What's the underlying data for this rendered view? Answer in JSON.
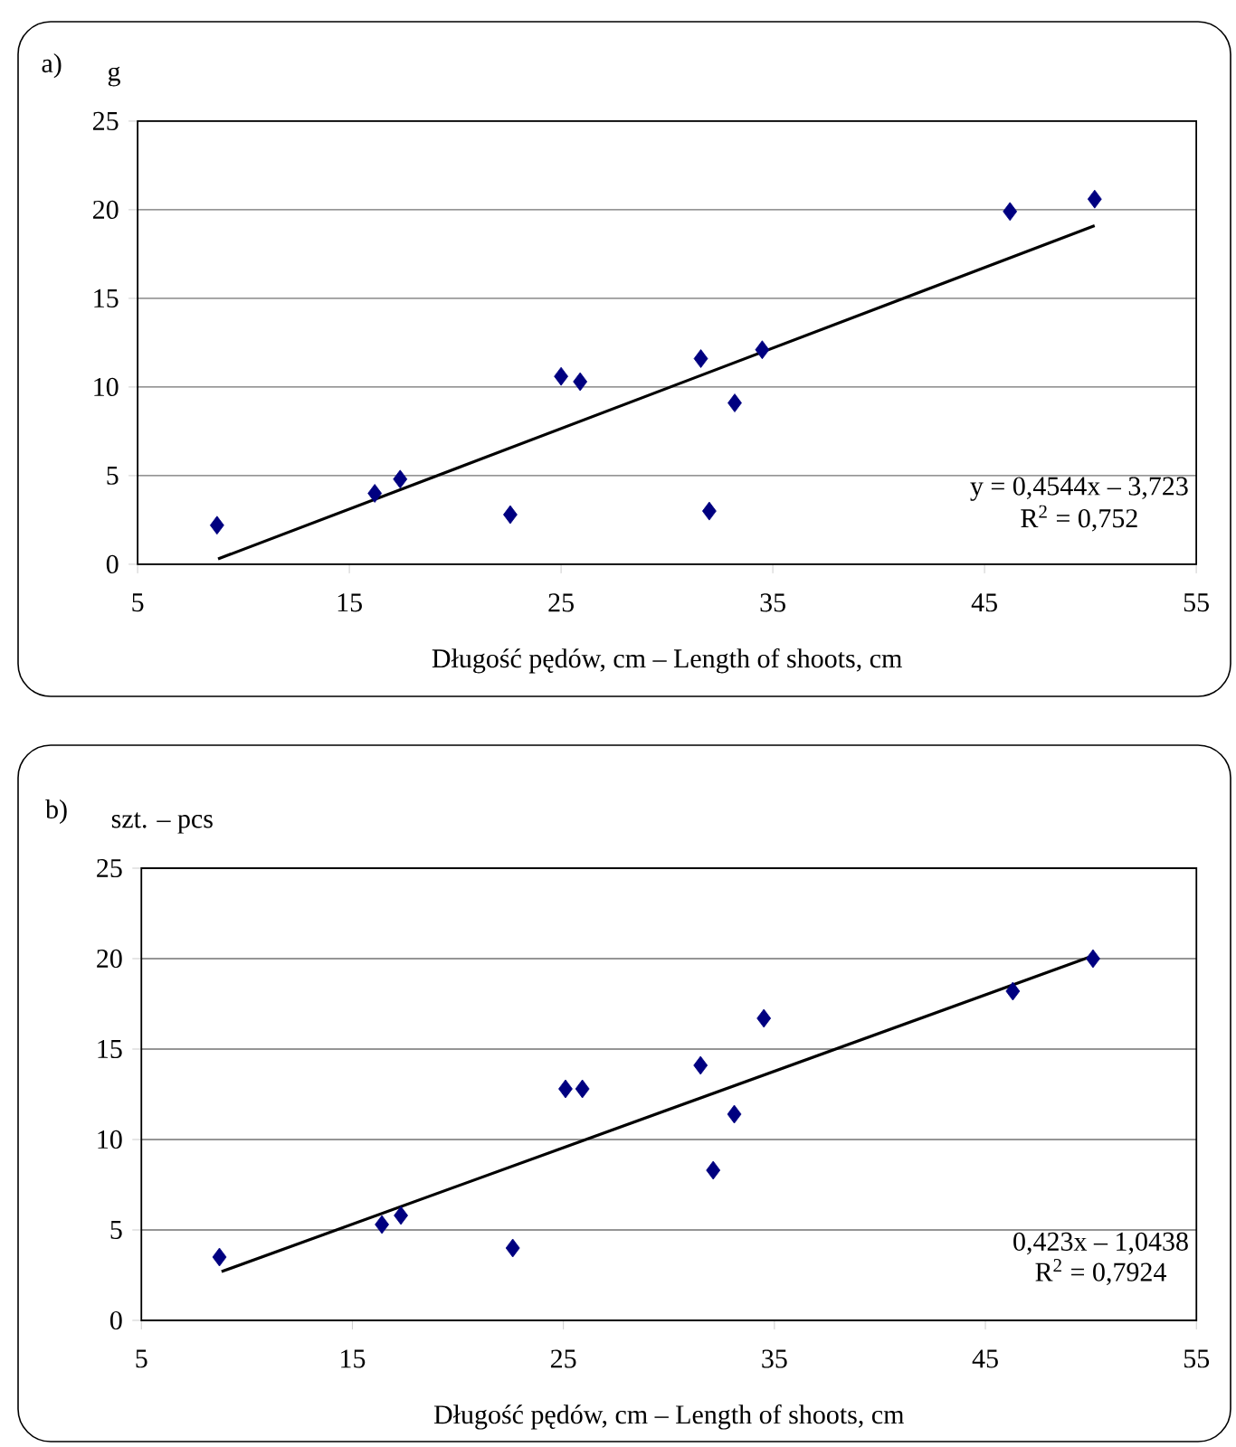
{
  "chart_data": [
    {
      "type": "scatter",
      "ylabel": "g",
      "xlabel": "Długość pędów, cm – Length of shoots, cm",
      "annotations": [
        "a)",
        "y = 0,4544x – 3,723",
        "R$^{2}$ = 0,752"
      ],
      "xlim": [
        5,
        55
      ],
      "xticks": [
        5,
        15,
        25,
        35,
        45,
        55
      ],
      "ylim": [
        0,
        25
      ],
      "yticks": [
        0,
        5,
        10,
        15,
        20,
        25
      ],
      "grid": "y",
      "marker": "diamond",
      "series": [
        {
          "color": "#000080",
          "x": [
            8.75,
            16.2,
            17.4,
            22.6,
            25.0,
            25.9,
            31.6,
            32.0,
            33.2,
            34.5,
            46.2,
            50.2
          ],
          "values": [
            2.2,
            4.0,
            4.8,
            2.8,
            10.6,
            10.3,
            11.6,
            3.0,
            9.1,
            12.1,
            19.9,
            20.6
          ]
        },
        {
          "type": "line",
          "color": "#000000",
          "marker": "none",
          "x": [
            8.8,
            50.2
          ],
          "values": [
            0.3,
            19.1
          ]
        }
      ]
    },
    {
      "type": "scatter",
      "ylabel": "szt. – pcs",
      "xlabel": "Długość pędów, cm – Length of shoots, cm",
      "annotations": [
        "b)",
        "0,423x – 1,0438",
        "R$^{2}$ = 0,7924"
      ],
      "xlim": [
        5,
        55
      ],
      "xticks": [
        5,
        15,
        25,
        35,
        45,
        55
      ],
      "ylim": [
        0,
        25
      ],
      "yticks": [
        0,
        5,
        10,
        15,
        20,
        25
      ],
      "grid": "y",
      "marker": "diamond",
      "series": [
        {
          "color": "#000080",
          "x": [
            8.7,
            16.4,
            17.3,
            22.6,
            25.1,
            25.9,
            31.5,
            32.1,
            33.1,
            34.5,
            46.3,
            50.1
          ],
          "values": [
            3.5,
            5.3,
            5.8,
            4.0,
            12.8,
            12.8,
            14.1,
            8.3,
            11.4,
            16.7,
            18.2,
            20.0
          ]
        },
        {
          "type": "line",
          "color": "#000000",
          "marker": "none",
          "x": [
            8.8,
            50.2
          ],
          "values": [
            2.7,
            20.2
          ]
        }
      ]
    }
  ]
}
